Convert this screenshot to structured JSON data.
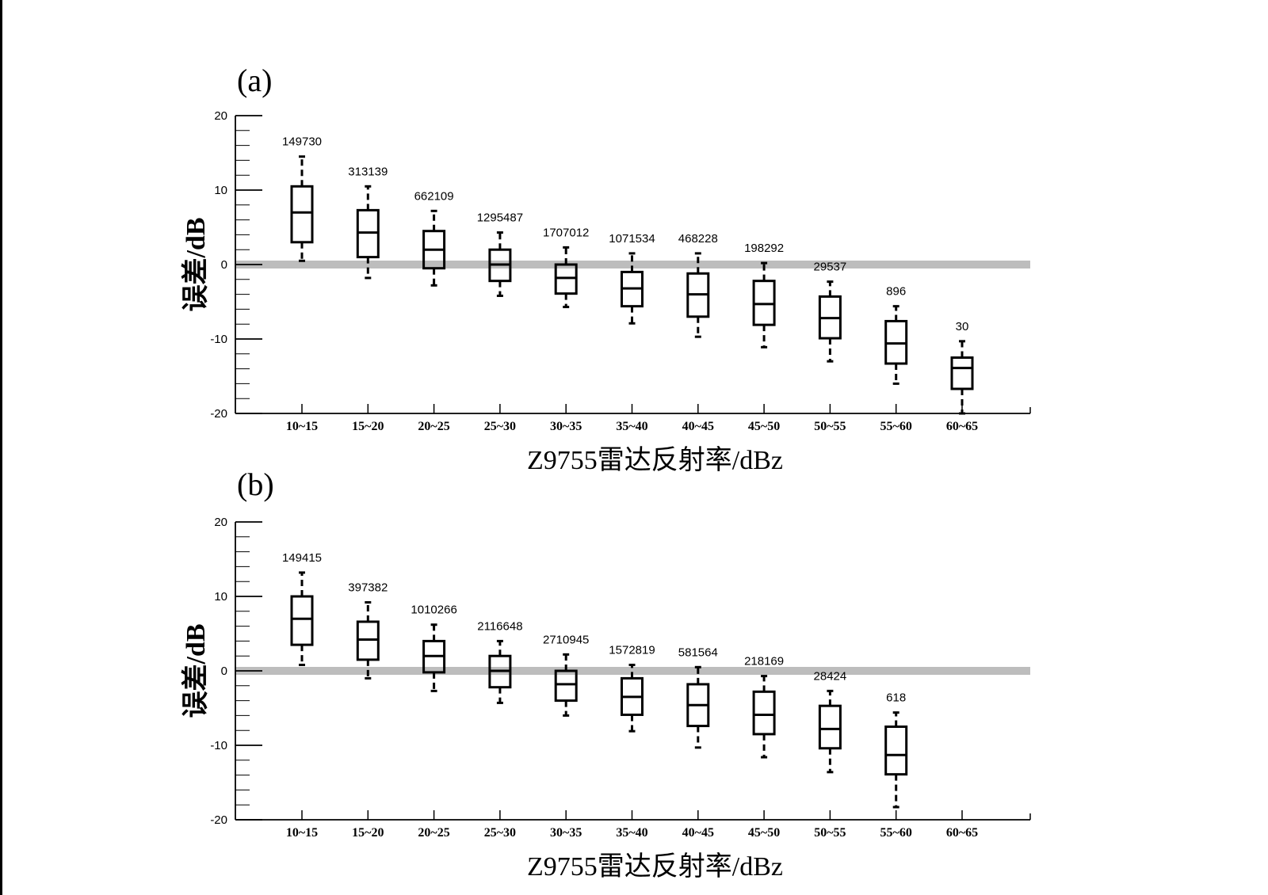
{
  "chart_data": [
    {
      "type": "box",
      "panel_label": "(a)",
      "xlabel": "Z9755雷达反射率/dBz",
      "ylabel": "误差/dB",
      "ylim": [
        -20,
        20
      ],
      "yticks": [
        20,
        10,
        0,
        -10,
        -20
      ],
      "reference_line": 0,
      "categories": [
        "10~15",
        "15~20",
        "20~25",
        "25~30",
        "30~35",
        "35~40",
        "40~45",
        "45~50",
        "50~55",
        "55~60",
        "60~65"
      ],
      "counts": [
        "149730",
        "313139",
        "662109",
        "1295487",
        "1707012",
        "1071534",
        "468228",
        "198292",
        "29537",
        "896",
        "30"
      ],
      "boxes": [
        {
          "whisker_low": 0.5,
          "q1": 3.0,
          "median": 7.0,
          "q3": 10.5,
          "whisker_high": 14.5
        },
        {
          "whisker_low": -1.8,
          "q1": 1.0,
          "median": 4.3,
          "q3": 7.3,
          "whisker_high": 10.5
        },
        {
          "whisker_low": -2.8,
          "q1": -0.5,
          "median": 2.0,
          "q3": 4.5,
          "whisker_high": 7.2
        },
        {
          "whisker_low": -4.2,
          "q1": -2.2,
          "median": 0.0,
          "q3": 2.0,
          "whisker_high": 4.3
        },
        {
          "whisker_low": -5.7,
          "q1": -3.9,
          "median": -1.8,
          "q3": 0.0,
          "whisker_high": 2.3
        },
        {
          "whisker_low": -7.9,
          "q1": -5.6,
          "median": -3.2,
          "q3": -1.0,
          "whisker_high": 1.5
        },
        {
          "whisker_low": -9.7,
          "q1": -7.0,
          "median": -4.0,
          "q3": -1.2,
          "whisker_high": 1.5
        },
        {
          "whisker_low": -11.1,
          "q1": -8.1,
          "median": -5.3,
          "q3": -2.2,
          "whisker_high": 0.2
        },
        {
          "whisker_low": -13.0,
          "q1": -9.9,
          "median": -7.2,
          "q3": -4.3,
          "whisker_high": -2.3
        },
        {
          "whisker_low": -16.0,
          "q1": -13.3,
          "median": -10.6,
          "q3": -7.6,
          "whisker_high": -5.6
        },
        {
          "whisker_low": -20.0,
          "q1": -16.7,
          "median": -13.9,
          "q3": -12.5,
          "whisker_high": -10.3
        }
      ]
    },
    {
      "type": "box",
      "panel_label": "(b)",
      "xlabel": "Z9755雷达反射率/dBz",
      "ylabel": "误差/dB",
      "ylim": [
        -20,
        20
      ],
      "yticks": [
        20,
        10,
        0,
        -10,
        -20
      ],
      "reference_line": 0,
      "categories": [
        "10~15",
        "15~20",
        "20~25",
        "25~30",
        "30~35",
        "35~40",
        "40~45",
        "45~50",
        "50~55",
        "55~60",
        "60~65"
      ],
      "counts": [
        "149415",
        "397382",
        "1010266",
        "2116648",
        "2710945",
        "1572819",
        "581564",
        "218169",
        "28424",
        "618",
        ""
      ],
      "boxes": [
        {
          "whisker_low": 0.8,
          "q1": 3.5,
          "median": 7.0,
          "q3": 10.0,
          "whisker_high": 13.2
        },
        {
          "whisker_low": -1.0,
          "q1": 1.5,
          "median": 4.2,
          "q3": 6.6,
          "whisker_high": 9.2
        },
        {
          "whisker_low": -2.7,
          "q1": -0.2,
          "median": 2.0,
          "q3": 4.0,
          "whisker_high": 6.2
        },
        {
          "whisker_low": -4.3,
          "q1": -2.2,
          "median": 0.0,
          "q3": 2.0,
          "whisker_high": 4.0
        },
        {
          "whisker_low": -6.0,
          "q1": -4.0,
          "median": -1.8,
          "q3": 0.0,
          "whisker_high": 2.2
        },
        {
          "whisker_low": -8.1,
          "q1": -5.9,
          "median": -3.5,
          "q3": -1.0,
          "whisker_high": 0.8
        },
        {
          "whisker_low": -10.3,
          "q1": -7.4,
          "median": -4.6,
          "q3": -1.8,
          "whisker_high": 0.5
        },
        {
          "whisker_low": -11.6,
          "q1": -8.5,
          "median": -5.9,
          "q3": -2.8,
          "whisker_high": -0.7
        },
        {
          "whisker_low": -13.6,
          "q1": -10.4,
          "median": -7.8,
          "q3": -4.7,
          "whisker_high": -2.7
        },
        {
          "whisker_low": -18.3,
          "q1": -13.9,
          "median": -11.3,
          "q3": -7.5,
          "whisker_high": -5.6
        },
        null
      ]
    }
  ]
}
